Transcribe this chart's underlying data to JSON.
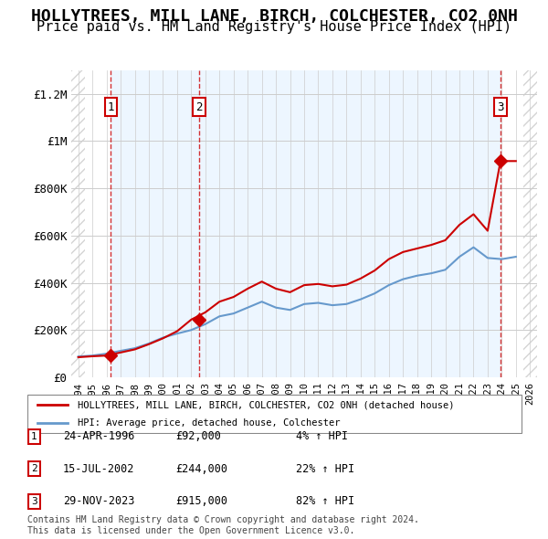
{
  "title": "HOLLYTREES, MILL LANE, BIRCH, COLCHESTER, CO2 0NH",
  "subtitle": "Price paid vs. HM Land Registry's House Price Index (HPI)",
  "title_fontsize": 13,
  "subtitle_fontsize": 11,
  "ylim": [
    0,
    1300000
  ],
  "xlim_start": 1993.5,
  "xlim_end": 2026.5,
  "yticks": [
    0,
    200000,
    400000,
    600000,
    800000,
    1000000,
    1200000
  ],
  "ytick_labels": [
    "£0",
    "£200K",
    "£400K",
    "£600K",
    "£800K",
    "£1M",
    "£1.2M"
  ],
  "xticks": [
    1994,
    1995,
    1996,
    1997,
    1998,
    1999,
    2000,
    2001,
    2002,
    2003,
    2004,
    2005,
    2006,
    2007,
    2008,
    2009,
    2010,
    2011,
    2012,
    2013,
    2014,
    2015,
    2016,
    2017,
    2018,
    2019,
    2020,
    2021,
    2022,
    2023,
    2024,
    2025,
    2026
  ],
  "hpi_color": "#6699cc",
  "property_color": "#cc0000",
  "sale_dates": [
    1996.31,
    2002.54,
    2023.91
  ],
  "sale_prices": [
    92000,
    244000,
    915000
  ],
  "sale_labels": [
    "1",
    "2",
    "3"
  ],
  "legend_property": "HOLLYTREES, MILL LANE, BIRCH, COLCHESTER, CO2 0NH (detached house)",
  "legend_hpi": "HPI: Average price, detached house, Colchester",
  "table_entries": [
    {
      "num": "1",
      "date": "24-APR-1996",
      "price": "£92,000",
      "hpi": "4% ↑ HPI"
    },
    {
      "num": "2",
      "date": "15-JUL-2002",
      "price": "£244,000",
      "hpi": "22% ↑ HPI"
    },
    {
      "num": "3",
      "date": "29-NOV-2023",
      "price": "£915,000",
      "hpi": "82% ↑ HPI"
    }
  ],
  "footnote": "Contains HM Land Registry data © Crown copyright and database right 2024.\nThis data is licensed under the Open Government Licence v3.0.",
  "hatch_color": "#aaaaaa",
  "shade_color": "#ddeeff",
  "bg_color": "#ffffff",
  "grid_color": "#cccccc"
}
